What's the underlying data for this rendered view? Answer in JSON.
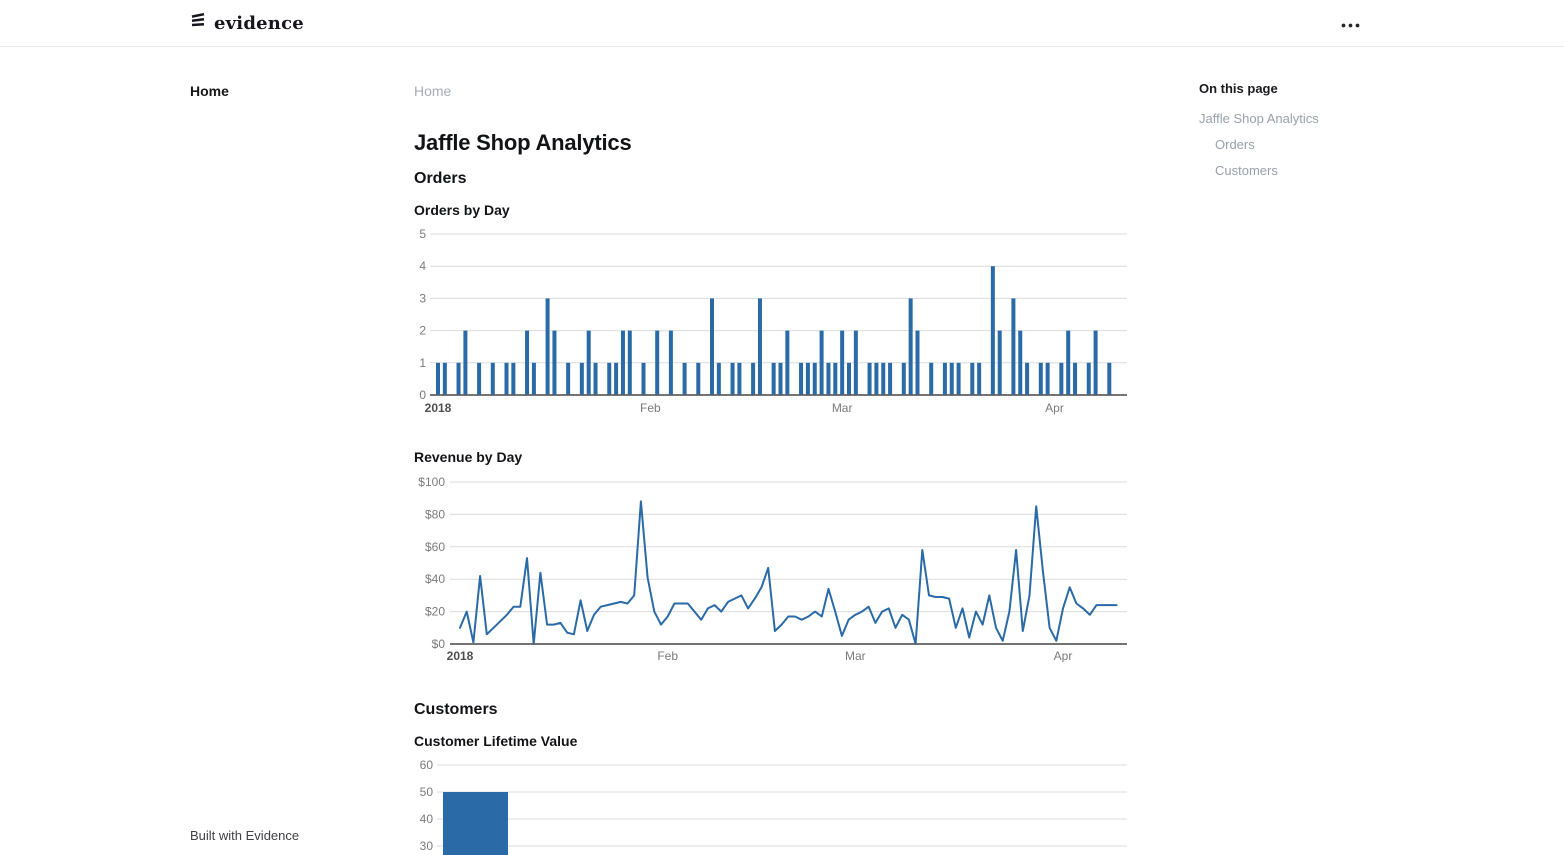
{
  "header": {
    "logo_text": "evidence"
  },
  "nav": {
    "sidebar": {
      "items": [
        {
          "label": "Home"
        }
      ]
    },
    "breadcrumb": {
      "label": "Home"
    }
  },
  "page": {
    "title": "Jaffle Shop Analytics",
    "sections": [
      {
        "label": "Orders"
      },
      {
        "label": "Customers"
      }
    ]
  },
  "toc": {
    "title": "On this page",
    "items": [
      {
        "label": "Jaffle Shop Analytics",
        "indent": 0
      },
      {
        "label": "Orders",
        "indent": 1
      },
      {
        "label": "Customers",
        "indent": 1
      }
    ]
  },
  "footer": {
    "label": "Built with Evidence"
  },
  "colors": {
    "accent": "#2a6aa6",
    "grid": "#dcdcdc",
    "axis": "#606060",
    "tick_text": "#7a7a7a",
    "tick_text_strong": "#4f4f4f",
    "muted_text": "#98a0aa"
  },
  "chart_data": [
    {
      "type": "bar",
      "title": "Orders by Day",
      "x": "daily dates, 2018-01-01 through 2018-04-09",
      "x_ticks": [
        {
          "label": "2018",
          "day": 0,
          "bold": true
        },
        {
          "label": "Feb",
          "day": 31
        },
        {
          "label": "Mar",
          "day": 59
        },
        {
          "label": "Apr",
          "day": 90
        }
      ],
      "ylim": [
        0,
        5
      ],
      "yticks": [
        {
          "value": 0,
          "label": "0"
        },
        {
          "value": 1,
          "label": "1"
        },
        {
          "value": 2,
          "label": "2"
        },
        {
          "value": 3,
          "label": "3"
        },
        {
          "value": 4,
          "label": "4"
        },
        {
          "value": 5,
          "label": "5"
        }
      ],
      "values": [
        1,
        1,
        0,
        1,
        2,
        0,
        1,
        0,
        1,
        0,
        1,
        1,
        0,
        2,
        1,
        0,
        3,
        2,
        0,
        1,
        0,
        1,
        2,
        1,
        0,
        1,
        1,
        2,
        2,
        0,
        1,
        0,
        2,
        0,
        2,
        0,
        1,
        0,
        1,
        0,
        3,
        1,
        0,
        1,
        1,
        0,
        1,
        3,
        0,
        1,
        1,
        2,
        0,
        1,
        1,
        1,
        2,
        1,
        1,
        2,
        1,
        2,
        0,
        1,
        1,
        1,
        1,
        0,
        1,
        3,
        2,
        0,
        1,
        0,
        1,
        1,
        1,
        0,
        1,
        1,
        0,
        4,
        2,
        0,
        3,
        2,
        1,
        0,
        1,
        1,
        0,
        1,
        2,
        1,
        0,
        1,
        2,
        0,
        1
      ]
    },
    {
      "type": "line",
      "title": "Revenue by Day",
      "x": "daily dates, 2018-01-01 through 2018-04-09",
      "x_ticks": [
        {
          "label": "2018",
          "day": 0,
          "bold": true
        },
        {
          "label": "Feb",
          "day": 31
        },
        {
          "label": "Mar",
          "day": 59
        },
        {
          "label": "Apr",
          "day": 90
        }
      ],
      "ylim": [
        0,
        100
      ],
      "yticks": [
        {
          "value": 0,
          "label": "$0"
        },
        {
          "value": 20,
          "label": "$20"
        },
        {
          "value": 40,
          "label": "$40"
        },
        {
          "value": 60,
          "label": "$60"
        },
        {
          "value": 80,
          "label": "$80"
        },
        {
          "value": 100,
          "label": "$100"
        }
      ],
      "values": [
        10,
        20,
        1,
        42,
        6,
        10,
        14,
        18,
        23,
        23,
        53,
        0,
        44,
        12,
        12,
        13,
        7,
        6,
        27,
        8,
        18,
        23,
        24,
        25,
        26,
        25,
        30,
        88,
        41,
        20,
        12,
        17,
        25,
        25,
        25,
        20,
        15,
        22,
        24,
        20,
        26,
        28,
        30,
        22,
        28,
        35,
        47,
        8,
        12,
        17,
        17,
        15,
        17,
        20,
        17,
        34,
        20,
        5,
        15,
        18,
        20,
        23,
        13,
        20,
        22,
        10,
        18,
        15,
        0,
        58,
        30,
        29,
        29,
        28,
        10,
        22,
        4,
        20,
        12,
        30,
        10,
        2,
        20,
        58,
        8,
        30,
        85,
        45,
        10,
        2,
        22,
        35,
        25,
        22,
        18,
        24,
        24,
        24,
        24
      ]
    },
    {
      "type": "bar",
      "title": "Customer Lifetime Value",
      "ylim": [
        0,
        60
      ],
      "yticks": [
        {
          "value": 60,
          "label": "60"
        },
        {
          "value": 50,
          "label": "50"
        },
        {
          "value": 40,
          "label": "40"
        },
        {
          "value": 30,
          "label": "30"
        }
      ],
      "values": [
        50
      ],
      "clipped_at_bottom": true
    }
  ]
}
